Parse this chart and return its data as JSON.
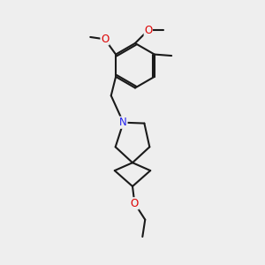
{
  "bg_color": "#eeeeee",
  "bond_color": "#1a1a1a",
  "N_color": "#2222ee",
  "O_color": "#dd0000",
  "bond_lw": 1.5,
  "font_size": 8.5,
  "figsize": [
    3.0,
    3.0
  ],
  "dpi": 100,
  "xlim": [
    0,
    10
  ],
  "ylim": [
    0,
    10
  ]
}
